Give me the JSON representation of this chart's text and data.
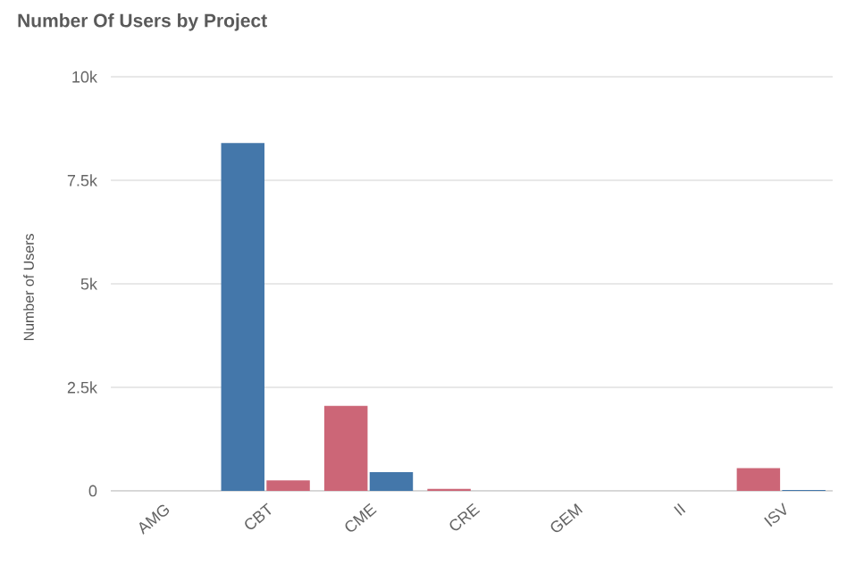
{
  "chart_data": {
    "type": "bar",
    "title": "Number Of Users by Project",
    "ylabel": "Number of Users",
    "categories": [
      "AMG",
      "CBT",
      "CME",
      "CRE",
      "GEM",
      "II",
      "ISV"
    ],
    "series": [
      {
        "values": [
          null,
          8400,
          2050,
          50,
          null,
          null,
          550
        ],
        "colors": [
          "#4477aa",
          "#4477aa",
          "#cc6677",
          "#cc6677",
          "#cc6677",
          "#cc6677",
          "#cc6677"
        ]
      },
      {
        "values": [
          null,
          250,
          450,
          null,
          null,
          null,
          20
        ],
        "colors": [
          "#4477aa",
          "#cc6677",
          "#4477aa",
          "#4477aa",
          "#4477aa",
          "#4477aa",
          "#4477aa"
        ]
      }
    ],
    "ylim": [
      0,
      10000
    ],
    "yticks": [
      {
        "value": 0,
        "label": "0"
      },
      {
        "value": 2500,
        "label": "2.5k"
      },
      {
        "value": 5000,
        "label": "5k"
      },
      {
        "value": 7500,
        "label": "7.5k"
      },
      {
        "value": 10000,
        "label": "10k"
      }
    ],
    "grid": "y"
  }
}
